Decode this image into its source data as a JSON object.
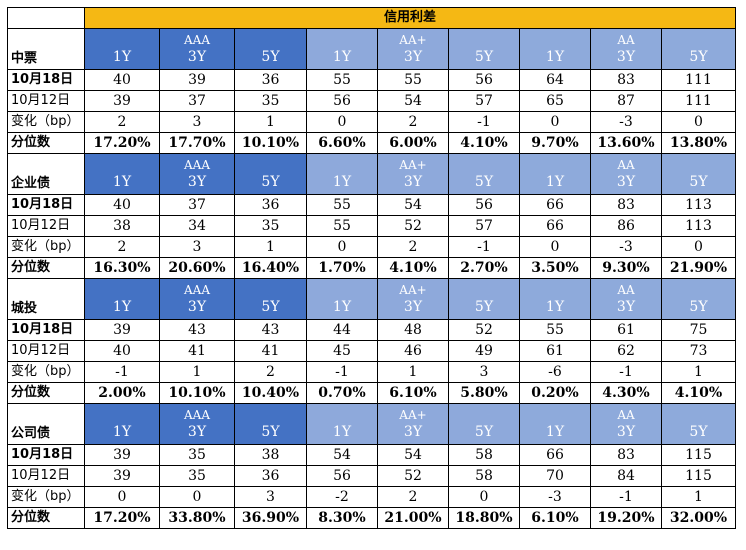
{
  "title": "信用利差",
  "tenors": [
    "1Y",
    "3Y",
    "5Y"
  ],
  "grades": [
    "AAA",
    "AA+",
    "AA"
  ],
  "row_labels": [
    "10月18日",
    "10月12日",
    "变化（bp）",
    "分位数"
  ],
  "colors": {
    "title_bg": "#f5b814",
    "aaa_header": "#4472c4",
    "aa_plus_header": "#8ea9db",
    "aa_header": "#8eaadb"
  },
  "sections": [
    {
      "name": "中票",
      "rows": [
        [
          "40",
          "39",
          "36",
          "55",
          "55",
          "56",
          "64",
          "83",
          "111"
        ],
        [
          "39",
          "37",
          "35",
          "56",
          "54",
          "57",
          "65",
          "87",
          "111"
        ],
        [
          "2",
          "3",
          "1",
          "0",
          "2",
          "-1",
          "0",
          "-3",
          "0"
        ],
        [
          "17.20%",
          "17.70%",
          "10.10%",
          "6.60%",
          "6.00%",
          "4.10%",
          "9.70%",
          "13.60%",
          "13.80%"
        ]
      ]
    },
    {
      "name": "企业债",
      "rows": [
        [
          "40",
          "37",
          "36",
          "55",
          "54",
          "56",
          "66",
          "83",
          "113"
        ],
        [
          "38",
          "34",
          "35",
          "55",
          "52",
          "57",
          "66",
          "86",
          "113"
        ],
        [
          "2",
          "3",
          "1",
          "0",
          "2",
          "-1",
          "0",
          "-3",
          "0"
        ],
        [
          "16.30%",
          "20.60%",
          "16.40%",
          "1.70%",
          "4.10%",
          "2.70%",
          "3.50%",
          "9.30%",
          "21.90%"
        ]
      ]
    },
    {
      "name": "城投",
      "rows": [
        [
          "39",
          "43",
          "43",
          "44",
          "48",
          "52",
          "55",
          "61",
          "75"
        ],
        [
          "40",
          "41",
          "41",
          "45",
          "46",
          "49",
          "61",
          "62",
          "73"
        ],
        [
          "-1",
          "1",
          "2",
          "-1",
          "1",
          "3",
          "-6",
          "-1",
          "1"
        ],
        [
          "2.00%",
          "10.10%",
          "10.40%",
          "0.70%",
          "6.10%",
          "5.80%",
          "0.20%",
          "4.30%",
          "4.10%"
        ]
      ]
    },
    {
      "name": "公司债",
      "rows": [
        [
          "39",
          "35",
          "38",
          "54",
          "54",
          "58",
          "66",
          "83",
          "115"
        ],
        [
          "39",
          "35",
          "36",
          "56",
          "52",
          "58",
          "70",
          "84",
          "115"
        ],
        [
          "0",
          "0",
          "3",
          "-2",
          "2",
          "0",
          "-3",
          "-1",
          "1"
        ],
        [
          "17.20%",
          "33.80%",
          "36.90%",
          "8.30%",
          "21.00%",
          "18.80%",
          "6.10%",
          "19.20%",
          "32.00%"
        ]
      ]
    }
  ]
}
